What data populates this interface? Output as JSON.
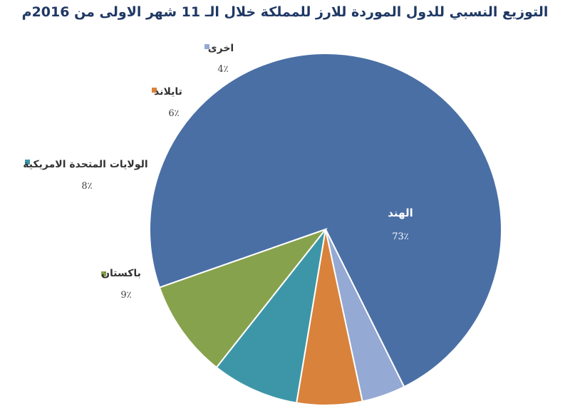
{
  "chart_data": {
    "type": "pie",
    "title": "التوزيع النسبي للدول الموردة للارز للمملكة خلال الـ 11 شهر الاولى من 2016م",
    "slices": [
      {
        "label": "الهند",
        "value": 73,
        "value_label": "73٪",
        "color": "#4a6fa5"
      },
      {
        "label": "باكستان",
        "value": 9,
        "value_label": "9٪",
        "color": "#87a24d"
      },
      {
        "label": "الولايات المتحدة الامريكية",
        "value": 8,
        "value_label": "8٪",
        "color": "#3d96a8"
      },
      {
        "label": "تايلاند",
        "value": 6,
        "value_label": "6٪",
        "color": "#d9823b"
      },
      {
        "label": "اخرى",
        "value": 4,
        "value_label": "4٪",
        "color": "#94a9d3"
      }
    ],
    "legend": "labels-beside-slices"
  }
}
